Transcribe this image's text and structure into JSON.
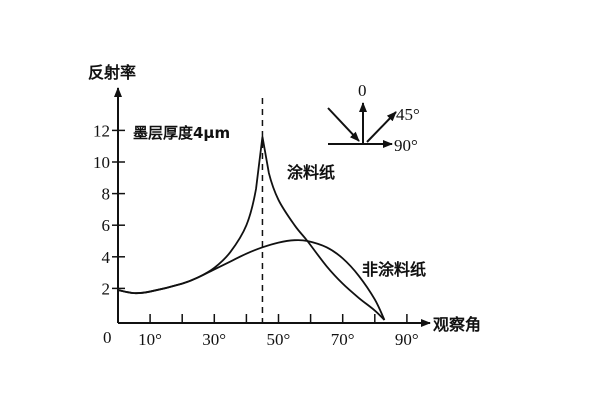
{
  "chart_data": {
    "type": "line",
    "title": "",
    "xlabel": "观察角",
    "ylabel": "反射率",
    "origin_label": "0",
    "xlim": [
      0,
      90
    ],
    "ylim": [
      0,
      12
    ],
    "x_ticks": [
      10,
      20,
      30,
      40,
      50,
      60,
      70,
      80,
      90
    ],
    "x_tick_labels": [
      "10°",
      "30°",
      "50°",
      "70°",
      "90°"
    ],
    "x_tick_label_values": [
      10,
      30,
      50,
      70,
      90
    ],
    "y_ticks": [
      2,
      4,
      6,
      8,
      10,
      12
    ],
    "y_tick_labels": [
      "2",
      "4",
      "6",
      "8",
      "10",
      "12"
    ],
    "grid": false,
    "reference_line": {
      "x": 45,
      "style": "dashed"
    },
    "series": [
      {
        "name": "涂料纸",
        "x": [
          0,
          5,
          10,
          20,
          25,
          30,
          35,
          40,
          43,
          45,
          47,
          50,
          55,
          59,
          65,
          70,
          75,
          80,
          83
        ],
        "y": [
          1.9,
          1.7,
          1.8,
          2.3,
          2.7,
          3.3,
          4.3,
          6.0,
          8.3,
          11.6,
          9.3,
          7.6,
          6.0,
          5.0,
          3.4,
          2.3,
          1.4,
          0.6,
          0
        ]
      },
      {
        "name": "非涂料纸",
        "x": [
          0,
          5,
          10,
          20,
          25,
          30,
          35,
          40,
          45,
          50,
          55,
          59,
          65,
          70,
          75,
          80,
          83
        ],
        "y": [
          1.9,
          1.7,
          1.8,
          2.3,
          2.7,
          3.2,
          3.7,
          4.2,
          4.6,
          4.9,
          5.05,
          5.0,
          4.6,
          3.9,
          2.8,
          1.3,
          0
        ]
      }
    ],
    "annotations": {
      "peak_label": "墨层厚度4μm",
      "coated_label": "涂料纸",
      "uncoated_label": "非涂料纸"
    },
    "inset": {
      "labels": [
        "0",
        "45°",
        "90°"
      ]
    }
  }
}
